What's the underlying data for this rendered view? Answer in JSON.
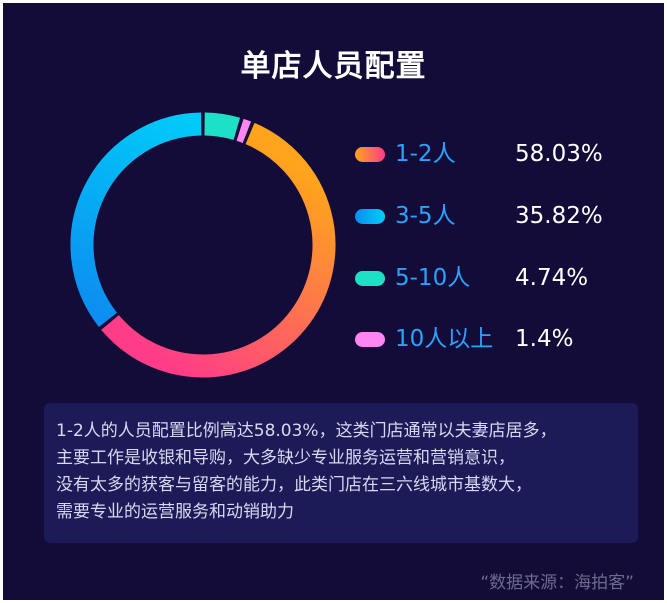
{
  "title": "单店人员配置",
  "chart_data": {
    "type": "pie",
    "title": "单店人员配置",
    "categories": [
      "1-2人",
      "3-5人",
      "5-10人",
      "10人以上"
    ],
    "values": [
      58.03,
      35.82,
      4.74,
      1.4
    ],
    "value_labels": [
      "58.03%",
      "35.82%",
      "4.74%",
      "1.4%"
    ],
    "colors": [
      [
        "#ffa41c",
        "#ff3c88"
      ],
      [
        "#0c8ef0",
        "#00cbf8"
      ],
      [
        "#1de0c8",
        "#1de0c8"
      ],
      [
        "#ff86f2",
        "#ff86f2"
      ]
    ],
    "legend_position": "right",
    "style": "donut"
  },
  "note": {
    "lines": [
      "1-2人的人员配置比例高达58.03%，这类门店通常以夫妻店居多，",
      "主要工作是收银和导购，大多缺少专业服务运营和营销意识，",
      "没有太多的获客与留客的能力，此类门店在三六线城市基数大，",
      "需要专业的运营服务和动销助力"
    ]
  },
  "source": "“数据来源：海拍客”"
}
